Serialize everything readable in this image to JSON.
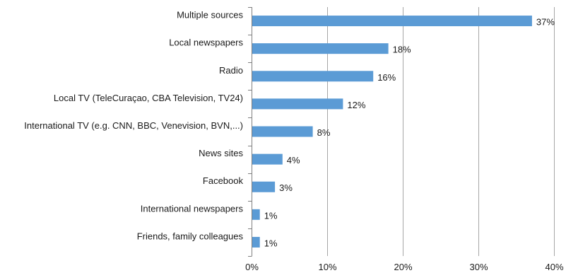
{
  "chart_data": {
    "type": "bar",
    "orientation": "horizontal",
    "categories": [
      "Multiple sources",
      "Local newspapers",
      "Radio",
      "Local TV (TeleCuraçao, CBA Television, TV24)",
      "International TV (e.g. CNN, BBC, Venevision, BVN,...)",
      "News sites",
      "Facebook",
      "International newspapers",
      "Friends, family colleagues"
    ],
    "values": [
      37,
      18,
      16,
      12,
      8,
      4,
      3,
      1,
      1
    ],
    "value_labels": [
      "37%",
      "18%",
      "16%",
      "12%",
      "8%",
      "4%",
      "3%",
      "1%",
      "1%"
    ],
    "xlim": [
      0,
      40
    ],
    "x_ticks": [
      0,
      10,
      20,
      30,
      40
    ],
    "x_tick_labels": [
      "0%",
      "10%",
      "20%",
      "30%",
      "40%"
    ],
    "bar_color": "#5b9bd5",
    "grid": true,
    "legend": "none"
  }
}
